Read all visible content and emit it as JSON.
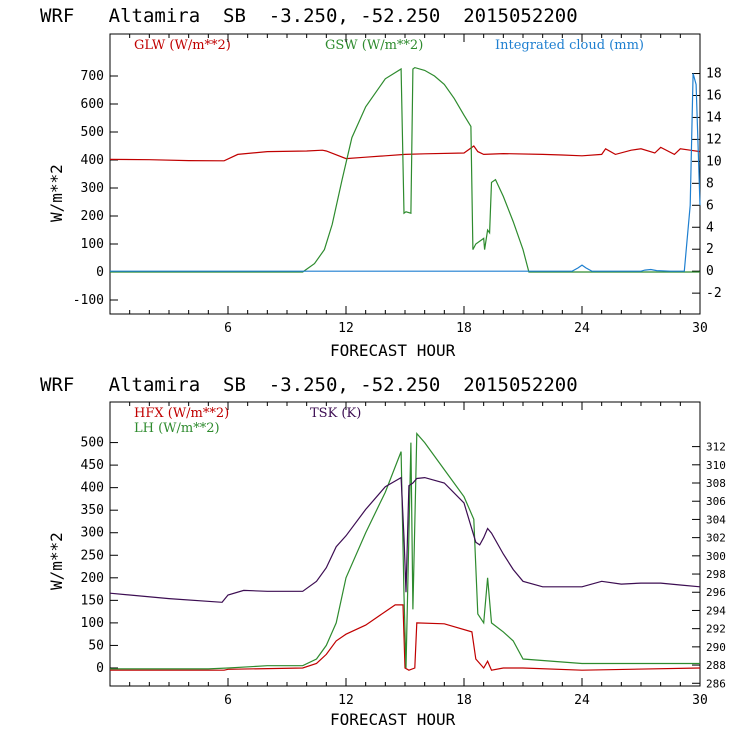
{
  "chart_data": [
    {
      "type": "line",
      "title": "WRF   Altamira  SB  -3.250, -52.250  2015052200",
      "xlabel": "FORECAST HOUR",
      "ylabel": "W/m**2",
      "xlim": [
        0,
        30
      ],
      "ylim": [
        -150,
        850
      ],
      "y2lim": [
        -3.9,
        21.6
      ],
      "xticks": [
        6,
        12,
        18,
        24,
        30
      ],
      "yticks": [
        -100,
        0,
        100,
        200,
        300,
        400,
        500,
        600,
        700
      ],
      "y2ticks": [
        -2,
        0,
        2,
        4,
        6,
        8,
        10,
        12,
        14,
        16,
        18
      ],
      "legend_position": "top",
      "series": [
        {
          "name": "GLW (W/m**2)",
          "color": "#c00000",
          "axis": "left",
          "x": [
            0,
            2,
            4,
            5.8,
            6.5,
            8,
            10,
            10.8,
            11,
            12,
            13,
            14,
            15,
            16,
            18,
            18.5,
            18.7,
            19,
            20,
            22,
            23,
            24,
            25,
            25.2,
            25.7,
            26.5,
            27,
            27.7,
            28,
            28.7,
            29,
            29.5,
            30
          ],
          "y": [
            402,
            401,
            398,
            397,
            420,
            430,
            432,
            435,
            432,
            405,
            410,
            415,
            420,
            422,
            425,
            450,
            430,
            420,
            423,
            420,
            418,
            415,
            420,
            440,
            420,
            435,
            440,
            425,
            445,
            420,
            440,
            435,
            430
          ]
        },
        {
          "name": "GSW (W/m**2)",
          "color": "#2e8b2e",
          "axis": "left",
          "x": [
            0,
            9.8,
            10.4,
            10.9,
            11.3,
            11.8,
            12.3,
            13,
            14,
            14.8,
            14.95,
            15.05,
            15.3,
            15.4,
            15.5,
            16,
            16.5,
            17,
            17.5,
            18,
            18.35,
            18.45,
            18.6,
            19,
            19.05,
            19.2,
            19.3,
            19.4,
            19.6,
            20,
            20.5,
            21,
            21.3,
            22,
            25,
            30
          ],
          "y": [
            0,
            0,
            30,
            80,
            170,
            330,
            480,
            590,
            690,
            725,
            210,
            215,
            210,
            725,
            730,
            720,
            700,
            670,
            620,
            560,
            520,
            80,
            100,
            120,
            80,
            150,
            140,
            320,
            330,
            270,
            180,
            80,
            0,
            0,
            0,
            0
          ]
        },
        {
          "name": "Integrated cloud (mm)",
          "color": "#1e7fd0",
          "axis": "right",
          "x": [
            0,
            23.5,
            23.8,
            24,
            24.2,
            24.5,
            27,
            27.2,
            27.5,
            27.8,
            28.5,
            29.2,
            29.5,
            29.65,
            29.8,
            30
          ],
          "y": [
            0,
            0,
            0.3,
            0.55,
            0.3,
            0,
            0,
            0.1,
            0.15,
            0.05,
            0,
            0,
            6,
            18,
            17,
            6
          ]
        }
      ]
    },
    {
      "type": "line",
      "title": "WRF   Altamira  SB  -3.250, -52.250  2015052200",
      "xlabel": "FORECAST HOUR",
      "ylabel": "W/m**2",
      "xlim": [
        0,
        30
      ],
      "ylim": [
        -40,
        590
      ],
      "y2lim": [
        285.7,
        316.9
      ],
      "xticks": [
        6,
        12,
        18,
        24,
        30
      ],
      "yticks": [
        0,
        50,
        100,
        150,
        200,
        250,
        300,
        350,
        400,
        450,
        500
      ],
      "y2ticks": [
        286,
        288,
        290,
        292,
        294,
        296,
        298,
        300,
        302,
        304,
        306,
        308,
        310,
        312
      ],
      "legend_position": "top-left",
      "series": [
        {
          "name": "HFX (W/m**2)",
          "color": "#c00000",
          "axis": "left",
          "x": [
            0,
            5.8,
            6,
            9.8,
            10.5,
            11,
            11.5,
            12,
            13,
            14,
            14.5,
            14.9,
            15,
            15.2,
            15.5,
            15.6,
            17,
            18.4,
            18.6,
            19,
            19.2,
            19.4,
            20,
            21,
            24,
            30
          ],
          "y": [
            -5,
            -5,
            -3,
            0,
            10,
            30,
            60,
            75,
            95,
            125,
            140,
            140,
            0,
            -5,
            0,
            100,
            98,
            80,
            20,
            0,
            15,
            -5,
            0,
            0,
            -5,
            0
          ]
        },
        {
          "name": "LH (W/m**2)",
          "color": "#2e8b2e",
          "axis": "left",
          "x": [
            0,
            5,
            6,
            8,
            9.8,
            10.5,
            11,
            11.5,
            12,
            13,
            14,
            14.8,
            14.95,
            15.05,
            15.3,
            15.4,
            15.6,
            16,
            17,
            18,
            18.5,
            18.7,
            19,
            19.2,
            19.4,
            20,
            20.5,
            21,
            24,
            26,
            28,
            30
          ],
          "y": [
            -2,
            -2,
            0,
            5,
            5,
            20,
            50,
            100,
            200,
            300,
            390,
            480,
            160,
            0,
            500,
            130,
            520,
            500,
            440,
            380,
            330,
            120,
            100,
            200,
            100,
            80,
            60,
            20,
            10,
            10,
            10,
            10
          ]
        },
        {
          "name": "TSK (K)",
          "color": "#3c0d52",
          "axis": "right",
          "x": [
            0,
            3,
            5.7,
            6,
            6.8,
            8,
            9.8,
            10.5,
            11,
            11.5,
            12,
            13,
            14,
            14.8,
            14.95,
            15.05,
            15.2,
            15.4,
            15.6,
            16,
            17,
            18,
            18.6,
            18.8,
            19,
            19.2,
            19.4,
            20,
            20.5,
            21,
            22,
            23,
            24,
            25,
            26,
            27,
            28,
            29,
            30
          ],
          "y": [
            295.9,
            295.3,
            294.9,
            295.7,
            296.2,
            296.1,
            296.1,
            297.2,
            298.7,
            301.0,
            302.2,
            305.1,
            307.6,
            308.6,
            302.0,
            296.0,
            307.7,
            308.0,
            308.5,
            308.6,
            308.0,
            305.8,
            301.5,
            301.2,
            302.0,
            303.0,
            302.5,
            300.2,
            298.5,
            297.2,
            296.6,
            296.6,
            296.6,
            297.2,
            296.9,
            297.0,
            297.0,
            296.8,
            296.6
          ]
        }
      ]
    }
  ]
}
